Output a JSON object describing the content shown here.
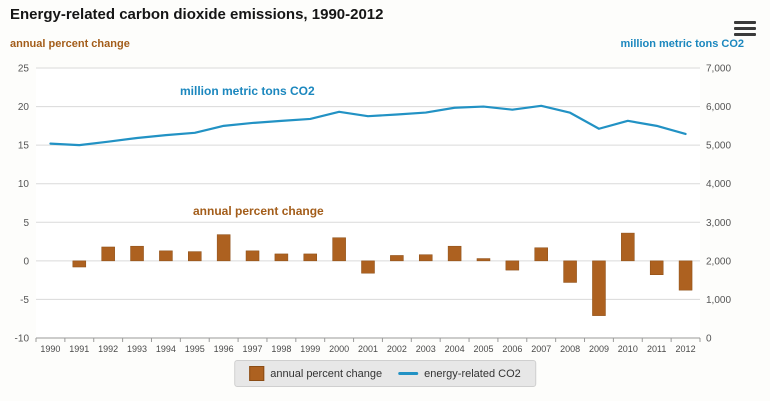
{
  "header": {
    "title": "Energy-related carbon dioxide emissions, 1990-2012"
  },
  "axes": {
    "left_label": "annual percent change",
    "right_label": "million metric tons CO2"
  },
  "annotations": {
    "line_label": "million metric tons CO2",
    "bar_label": "annual percent change"
  },
  "legend": {
    "items": [
      {
        "label": "annual percent change",
        "type": "bar"
      },
      {
        "label": "energy-related CO2",
        "type": "line"
      }
    ]
  },
  "colors": {
    "bar": "#ad6120",
    "bar_border": "#8a4c14",
    "line": "#2292c4",
    "brown_text": "#a35d1a",
    "blue_text": "#1b87be",
    "gridline": "#dadada",
    "axis_line": "#9a9a9a"
  },
  "chart_data": {
    "type": "bar+line",
    "title": "Energy-related carbon dioxide emissions, 1990-2012",
    "categories": [
      "1990",
      "1991",
      "1992",
      "1993",
      "1994",
      "1995",
      "1996",
      "1997",
      "1998",
      "1999",
      "2000",
      "2001",
      "2002",
      "2003",
      "2004",
      "2005",
      "2006",
      "2007",
      "2008",
      "2009",
      "2010",
      "2011",
      "2012"
    ],
    "series": [
      {
        "name": "annual percent change",
        "type": "bar",
        "axis": "left",
        "values": [
          null,
          -0.8,
          1.8,
          1.9,
          1.3,
          1.2,
          3.4,
          1.3,
          0.9,
          0.9,
          3.0,
          -1.6,
          0.7,
          0.8,
          1.9,
          0.3,
          -1.2,
          1.7,
          -2.8,
          -7.1,
          3.6,
          -1.8,
          -3.8
        ]
      },
      {
        "name": "energy-related CO2",
        "type": "line",
        "axis": "right",
        "values": [
          5040,
          5000,
          5090,
          5185,
          5260,
          5320,
          5500,
          5575,
          5630,
          5680,
          5865,
          5750,
          5795,
          5845,
          5970,
          6000,
          5920,
          6020,
          5840,
          5425,
          5630,
          5500,
          5290
        ]
      }
    ],
    "left_axis": {
      "label": "annual percent change",
      "range": [
        -10,
        25
      ],
      "ticks": [
        25,
        20,
        15,
        10,
        5,
        0,
        -5,
        -10
      ],
      "tick_labels": [
        "25",
        "20",
        "15",
        "10",
        "5",
        "0",
        "-5",
        "-10"
      ]
    },
    "right_axis": {
      "label": "million metric tons CO2",
      "range": [
        0,
        7000
      ],
      "ticks": [
        7000,
        6000,
        5000,
        4000,
        3000,
        2000,
        1000,
        0
      ],
      "tick_labels": [
        "7,000",
        "6,000",
        "5,000",
        "4,000",
        "3,000",
        "2,000",
        "1,000",
        "0"
      ]
    },
    "grid": true,
    "legend_position": "bottom"
  }
}
